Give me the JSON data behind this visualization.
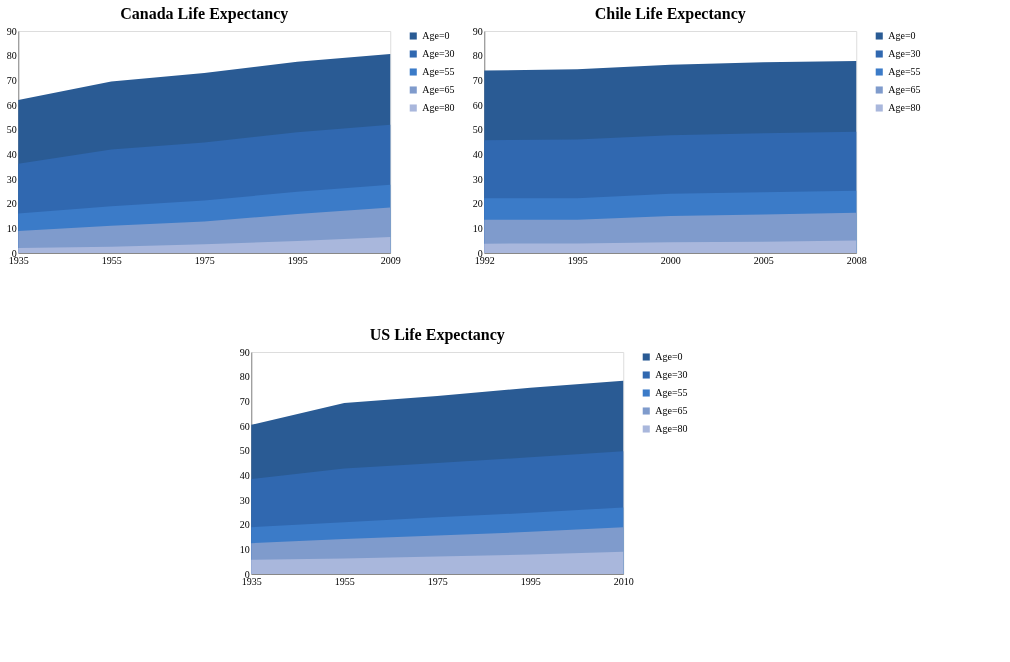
{
  "chart_data": [
    {
      "type": "area",
      "title": "Canada Life Expectancy",
      "categories": [
        "1935",
        "1955",
        "1975",
        "1995",
        "2009"
      ],
      "ylim": [
        0,
        90
      ],
      "yticks": [
        0,
        10,
        20,
        30,
        40,
        50,
        60,
        70,
        80,
        90
      ],
      "grid": false,
      "legend": "right",
      "series": [
        {
          "name": "Age=0",
          "color": "#2a5b94",
          "values": [
            62,
            69.5,
            73,
            77.5,
            80.7
          ]
        },
        {
          "name": "Age=30",
          "color": "#3068b0",
          "values": [
            36.2,
            42,
            44.8,
            49,
            52
          ]
        },
        {
          "name": "Age=55",
          "color": "#3b7bc8",
          "values": [
            16,
            19,
            21.3,
            24.8,
            27.7
          ]
        },
        {
          "name": "Age=65",
          "color": "#7f9bcc",
          "values": [
            8.9,
            11,
            12.8,
            15.8,
            18.4
          ]
        },
        {
          "name": "Age=80",
          "color": "#a9b7dc",
          "values": [
            2,
            2.5,
            3.5,
            4.9,
            6.5
          ]
        }
      ]
    },
    {
      "type": "area",
      "title": "Chile Life Expectancy",
      "categories": [
        "1992",
        "1995",
        "2000",
        "2005",
        "2008"
      ],
      "ylim": [
        0,
        90
      ],
      "yticks": [
        0,
        10,
        20,
        30,
        40,
        50,
        60,
        70,
        80,
        90
      ],
      "grid": false,
      "legend": "right",
      "series": [
        {
          "name": "Age=0",
          "color": "#2a5b94",
          "values": [
            74,
            74.5,
            76.3,
            77.3,
            77.8
          ]
        },
        {
          "name": "Age=30",
          "color": "#3068b0",
          "values": [
            45.7,
            46,
            47.7,
            48.5,
            49.2
          ]
        },
        {
          "name": "Age=55",
          "color": "#3b7bc8",
          "values": [
            22.2,
            22.2,
            24,
            24.6,
            25.2
          ]
        },
        {
          "name": "Age=65",
          "color": "#7f9bcc",
          "values": [
            13.5,
            13.5,
            15,
            15.6,
            16.3
          ]
        },
        {
          "name": "Age=80",
          "color": "#a9b7dc",
          "values": [
            3.8,
            3.9,
            4.4,
            4.6,
            5.1
          ]
        }
      ]
    },
    {
      "type": "area",
      "title": "US Life Expectancy",
      "categories": [
        "1935",
        "1955",
        "1975",
        "1995",
        "2010"
      ],
      "ylim": [
        0,
        90
      ],
      "yticks": [
        0,
        10,
        20,
        30,
        40,
        50,
        60,
        70,
        80,
        90
      ],
      "grid": false,
      "legend": "right",
      "series": [
        {
          "name": "Age=0",
          "color": "#2a5b94",
          "values": [
            60.5,
            69.3,
            72.2,
            75.5,
            78.3
          ]
        },
        {
          "name": "Age=30",
          "color": "#3068b0",
          "values": [
            38.5,
            42.8,
            45,
            47.3,
            49.8
          ]
        },
        {
          "name": "Age=55",
          "color": "#3b7bc8",
          "values": [
            19,
            21,
            23,
            24.8,
            27
          ]
        },
        {
          "name": "Age=65",
          "color": "#7f9bcc",
          "values": [
            12.5,
            14.2,
            15.6,
            17.1,
            19
          ]
        },
        {
          "name": "Age=80",
          "color": "#a9b7dc",
          "values": [
            5.8,
            6.3,
            7.1,
            7.9,
            9
          ]
        }
      ]
    }
  ]
}
